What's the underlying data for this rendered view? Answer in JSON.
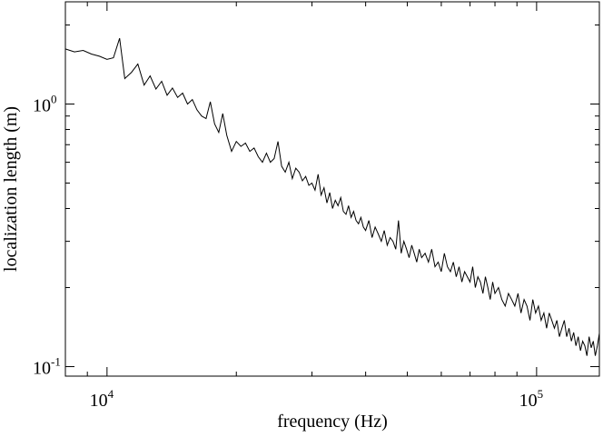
{
  "chart_data": {
    "type": "line",
    "title": "",
    "xlabel": "frequency (Hz)",
    "ylabel": "localization length (m)",
    "xscale": "log",
    "yscale": "log",
    "xlim": [
      8000,
      140000
    ],
    "ylim": [
      0.092,
      2.45
    ],
    "grid": false,
    "legend": "none",
    "x_ticks": [
      {
        "value": 10000,
        "base": "10",
        "exp": "4"
      },
      {
        "value": 100000,
        "base": "10",
        "exp": "5"
      }
    ],
    "y_ticks": [
      {
        "value": 1,
        "base": "10",
        "exp": "0"
      },
      {
        "value": 0.1,
        "base": "10",
        "exp": "-1"
      }
    ],
    "line_color": "#000000",
    "series": [
      {
        "x": [
          8000,
          8400,
          8800,
          9200,
          9600,
          10000,
          10350,
          10700,
          11000,
          11400,
          11800,
          12200,
          12600,
          13000,
          13400,
          13800,
          14200,
          14600,
          15000,
          15400,
          15800,
          16200,
          16600,
          17000,
          17400,
          17800,
          18200,
          18600,
          19000,
          19500,
          20000,
          20500,
          21000,
          21500,
          22000,
          22500,
          23000,
          23500,
          24000,
          24500,
          25000,
          25500,
          26000,
          26500,
          27000,
          27500,
          28000,
          28500,
          29000,
          29500,
          30000,
          30500,
          31000,
          31500,
          32000,
          32500,
          33000,
          33500,
          34000,
          34500,
          35000,
          35500,
          36000,
          36500,
          37000,
          37500,
          38000,
          38500,
          39000,
          39500,
          40000,
          40700,
          41400,
          42100,
          42800,
          43500,
          44200,
          44900,
          45600,
          46300,
          47000,
          47700,
          48400,
          49100,
          49800,
          50500,
          51200,
          51900,
          52600,
          53300,
          54000,
          55000,
          56000,
          57000,
          58000,
          59000,
          60000,
          61000,
          62000,
          63000,
          64000,
          65000,
          66000,
          67000,
          68000,
          69000,
          70000,
          71000,
          72000,
          73000,
          74000,
          75000,
          76000,
          77000,
          78000,
          79000,
          80000,
          81500,
          83000,
          84500,
          86000,
          87500,
          89000,
          90500,
          92000,
          93500,
          95000,
          96500,
          98000,
          99500,
          101000,
          102500,
          104000,
          105500,
          107000,
          108500,
          110000,
          111500,
          113000,
          114500,
          116000,
          117500,
          119000,
          120500,
          122000,
          123500,
          125000,
          126500,
          128000,
          129500,
          131000,
          132500,
          134000,
          135500,
          137000,
          138500,
          140000
        ],
        "y": [
          1.62,
          1.58,
          1.6,
          1.55,
          1.52,
          1.48,
          1.5,
          1.78,
          1.25,
          1.32,
          1.42,
          1.18,
          1.28,
          1.14,
          1.22,
          1.08,
          1.15,
          1.06,
          1.1,
          1.0,
          1.04,
          0.95,
          0.9,
          0.88,
          1.02,
          0.84,
          0.78,
          0.92,
          0.76,
          0.66,
          0.72,
          0.69,
          0.71,
          0.66,
          0.68,
          0.63,
          0.6,
          0.65,
          0.6,
          0.62,
          0.72,
          0.58,
          0.55,
          0.6,
          0.52,
          0.57,
          0.55,
          0.51,
          0.53,
          0.49,
          0.5,
          0.47,
          0.54,
          0.45,
          0.48,
          0.42,
          0.46,
          0.4,
          0.43,
          0.41,
          0.44,
          0.39,
          0.38,
          0.41,
          0.37,
          0.39,
          0.36,
          0.35,
          0.37,
          0.34,
          0.33,
          0.36,
          0.31,
          0.34,
          0.32,
          0.3,
          0.33,
          0.29,
          0.31,
          0.3,
          0.28,
          0.36,
          0.27,
          0.3,
          0.28,
          0.26,
          0.29,
          0.27,
          0.25,
          0.28,
          0.26,
          0.27,
          0.25,
          0.28,
          0.24,
          0.25,
          0.23,
          0.27,
          0.24,
          0.23,
          0.25,
          0.22,
          0.24,
          0.21,
          0.23,
          0.22,
          0.21,
          0.24,
          0.2,
          0.22,
          0.21,
          0.19,
          0.22,
          0.2,
          0.18,
          0.21,
          0.19,
          0.2,
          0.18,
          0.17,
          0.19,
          0.18,
          0.17,
          0.19,
          0.16,
          0.18,
          0.17,
          0.15,
          0.18,
          0.16,
          0.17,
          0.15,
          0.16,
          0.14,
          0.16,
          0.15,
          0.14,
          0.15,
          0.13,
          0.14,
          0.15,
          0.13,
          0.14,
          0.125,
          0.135,
          0.12,
          0.13,
          0.115,
          0.125,
          0.12,
          0.11,
          0.13,
          0.118,
          0.125,
          0.11,
          0.12,
          0.134
        ]
      }
    ]
  }
}
